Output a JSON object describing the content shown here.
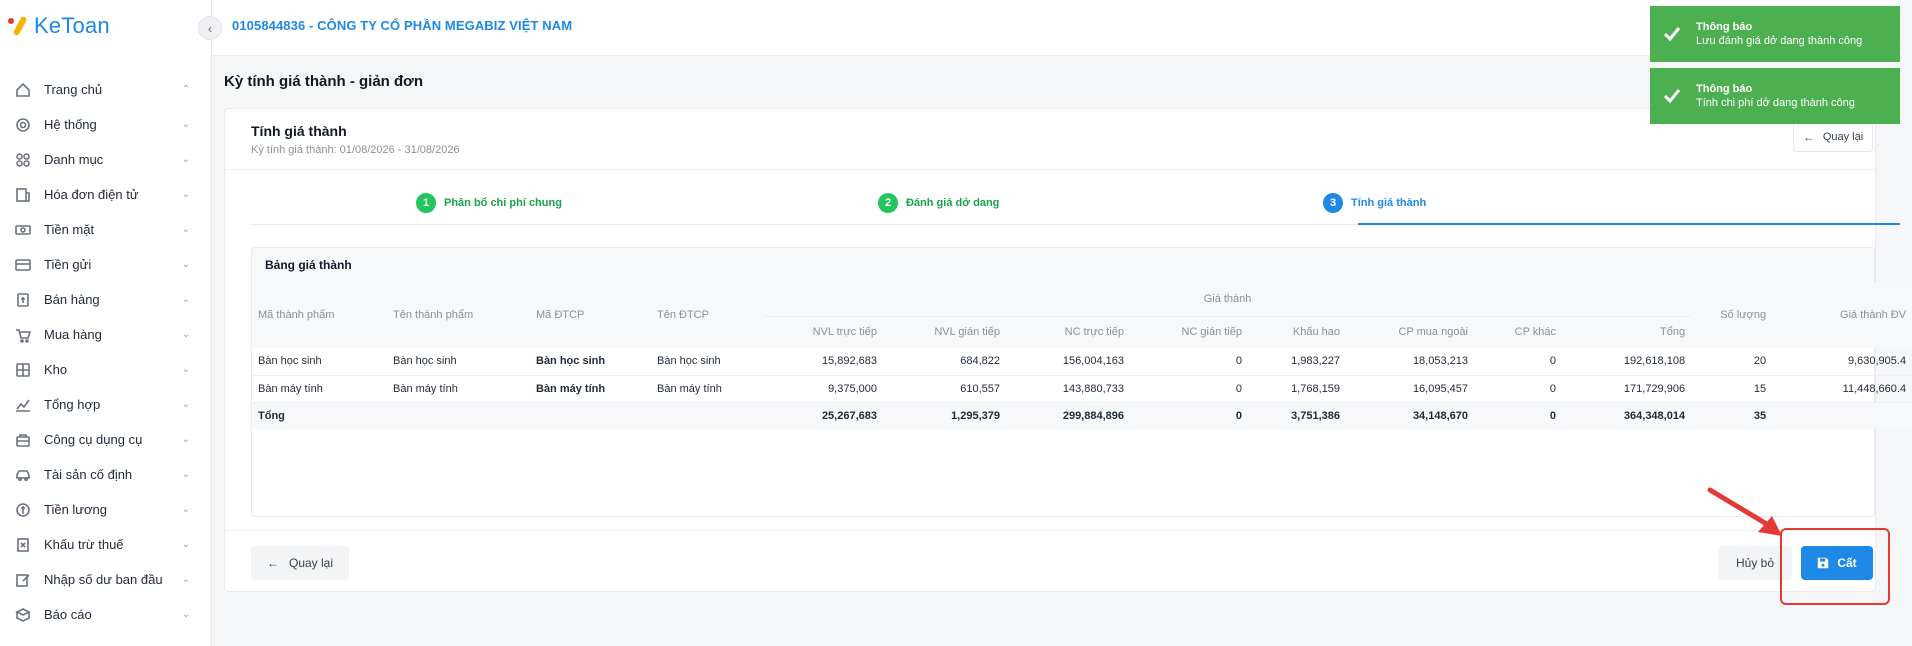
{
  "app": {
    "logo_text": "KeToan"
  },
  "header": {
    "company": "0105844836 - CÔNG TY CỔ PHẦN MEGABIZ VIỆT NAM"
  },
  "sidebar": {
    "items": [
      {
        "label": "Trang chủ",
        "icon": "home-icon",
        "chevron": "up"
      },
      {
        "label": "Hệ thống",
        "icon": "gear-icon",
        "chevron": "down"
      },
      {
        "label": "Danh mục",
        "icon": "grid-icon",
        "chevron": "down"
      },
      {
        "label": "Hóa đơn điện tử",
        "icon": "invoice-icon",
        "chevron": "down"
      },
      {
        "label": "Tiền mặt",
        "icon": "cash-icon",
        "chevron": "down"
      },
      {
        "label": "Tiền gửi",
        "icon": "card-icon",
        "chevron": "down"
      },
      {
        "label": "Bán hàng",
        "icon": "sales-icon",
        "chevron": "down"
      },
      {
        "label": "Mua hàng",
        "icon": "cart-icon",
        "chevron": "down"
      },
      {
        "label": "Kho",
        "icon": "warehouse-icon",
        "chevron": "down"
      },
      {
        "label": "Tổng hợp",
        "icon": "chart-icon",
        "chevron": "down"
      },
      {
        "label": "Công cụ dụng cụ",
        "icon": "tools-icon",
        "chevron": "down"
      },
      {
        "label": "Tài sản cố định",
        "icon": "car-icon",
        "chevron": "down"
      },
      {
        "label": "Tiền lương",
        "icon": "salary-icon",
        "chevron": "down"
      },
      {
        "label": "Khấu trừ thuế",
        "icon": "tax-icon",
        "chevron": "down"
      },
      {
        "label": "Nhập số dư ban đầu",
        "icon": "edit-icon",
        "chevron": "down"
      },
      {
        "label": "Báo cáo",
        "icon": "report-icon",
        "chevron": "down"
      }
    ]
  },
  "page": {
    "title": "Kỳ tính giá thành - giản đơn"
  },
  "card": {
    "title": "Tính giá thành",
    "subtitle": "Kỳ tính giá thành: 01/08/2026 - 31/08/2026",
    "back_top_label": "Quay lại"
  },
  "steps": [
    {
      "num": "1",
      "label": "Phân bổ chi phí chung",
      "state": "done"
    },
    {
      "num": "2",
      "label": "Đánh giá dở dang",
      "state": "done"
    },
    {
      "num": "3",
      "label": "Tính giá thành",
      "state": "active"
    }
  ],
  "table": {
    "panel_title": "Bảng giá thành",
    "group_header": "Giá thành",
    "columns": {
      "ma_tp": "Mã thành phẩm",
      "ten_tp": "Tên thành phẩm",
      "ma_dtcp": "Mã ĐTCP",
      "ten_dtcp": "Tên ĐTCP",
      "nvl_tt": "NVL trực tiếp",
      "nvl_gt": "NVL gián tiếp",
      "nc_tt": "NC trực tiếp",
      "nc_gt": "NC gián tiếp",
      "khau_hao": "Khấu hao",
      "cp_mn": "CP mua ngoài",
      "cp_khac": "CP khác",
      "tong": "Tổng",
      "so_luong": "Số lượng",
      "gia_dv": "Giá thành ĐV"
    },
    "rows": [
      {
        "ma_tp": "Bàn học sinh",
        "ten_tp": "Bàn học sinh",
        "ma_dtcp": "Bàn học sinh",
        "ten_dtcp": "Bàn học sinh",
        "nvl_tt": "15,892,683",
        "nvl_gt": "684,822",
        "nc_tt": "156,004,163",
        "nc_gt": "0",
        "khau_hao": "1,983,227",
        "cp_mn": "18,053,213",
        "cp_khac": "0",
        "tong": "192,618,108",
        "so_luong": "20",
        "gia_dv": "9,630,905.4"
      },
      {
        "ma_tp": "Bàn máy tính",
        "ten_tp": "Bàn máy tính",
        "ma_dtcp": "Bàn máy tính",
        "ten_dtcp": "Bàn máy tính",
        "nvl_tt": "9,375,000",
        "nvl_gt": "610,557",
        "nc_tt": "143,880,733",
        "nc_gt": "0",
        "khau_hao": "1,768,159",
        "cp_mn": "16,095,457",
        "cp_khac": "0",
        "tong": "171,729,906",
        "so_luong": "15",
        "gia_dv": "11,448,660.4"
      }
    ],
    "total": {
      "label": "Tổng",
      "nvl_tt": "25,267,683",
      "nvl_gt": "1,295,379",
      "nc_tt": "299,884,896",
      "nc_gt": "0",
      "khau_hao": "3,751,386",
      "cp_mn": "34,148,670",
      "cp_khac": "0",
      "tong": "364,348,014",
      "so_luong": "35",
      "gia_dv": ""
    }
  },
  "footer": {
    "back_label": "Quay lại",
    "cancel_label": "Hủy bỏ",
    "save_label": "Cất"
  },
  "toasts": [
    {
      "title": "Thông báo",
      "message": "Lưu đánh giá dở dang thành công"
    },
    {
      "title": "Thông báo",
      "message": "Tính chi phí dở dang thành công"
    }
  ],
  "colors": {
    "accent": "#1e88e5",
    "success": "#4caf50",
    "annotation": "#e53935"
  }
}
